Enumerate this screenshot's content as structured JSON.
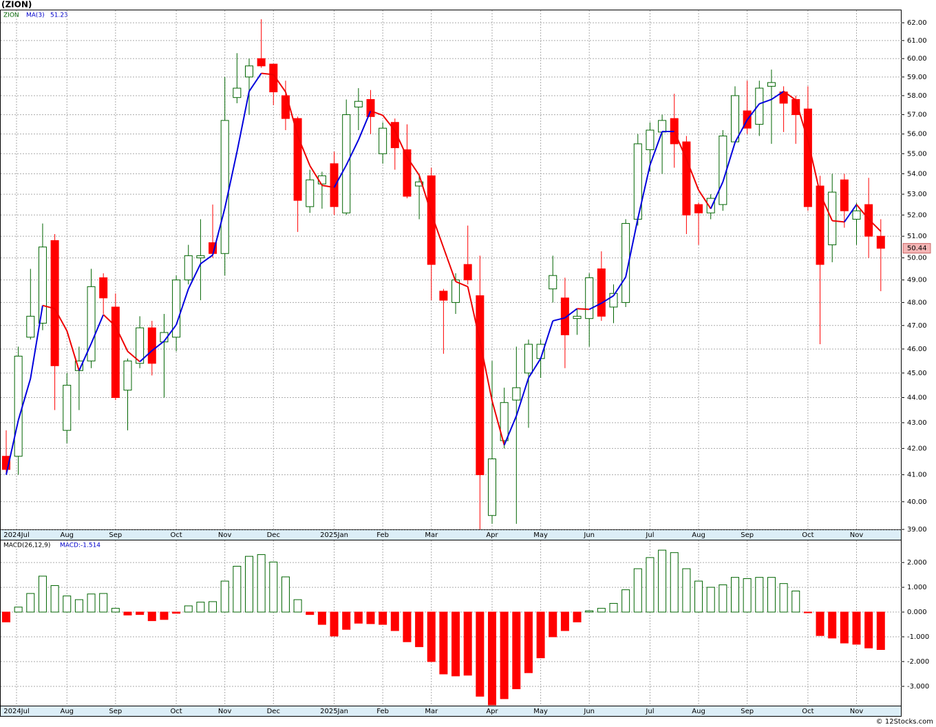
{
  "chart_data": [
    {
      "type": "candlestick",
      "title": "(ZION)",
      "symbol": "ZION",
      "ma_legend": "MA(3)",
      "log_scale": true,
      "grid": true,
      "up_color": "#006400",
      "down_color": "#ff0000",
      "ma_up_color": "#0000dd",
      "ma_down_color": "#ee0000",
      "ylim": [
        39,
        62.75
      ],
      "yticks": [
        {
          "value": 39,
          "label": "39.00"
        },
        {
          "value": 40,
          "label": "40.00"
        },
        {
          "value": 41,
          "label": "41.00"
        },
        {
          "value": 42,
          "label": "42.00"
        },
        {
          "value": 43,
          "label": "43.00"
        },
        {
          "value": 44,
          "label": "44.00"
        },
        {
          "value": 45,
          "label": "45.00"
        },
        {
          "value": 46,
          "label": "46.00"
        },
        {
          "value": 47,
          "label": "47.00"
        },
        {
          "value": 48,
          "label": "48.00"
        },
        {
          "value": 49,
          "label": "49.00"
        },
        {
          "value": 50,
          "label": "50.00"
        },
        {
          "value": 51,
          "label": "51.00"
        },
        {
          "value": 52,
          "label": "52.00"
        },
        {
          "value": 53,
          "label": "53.00"
        },
        {
          "value": 54,
          "label": "54.00"
        },
        {
          "value": 55,
          "label": "55.00"
        },
        {
          "value": 56,
          "label": "56.00"
        },
        {
          "value": 57,
          "label": "57.00"
        },
        {
          "value": 58,
          "label": "58.00"
        },
        {
          "value": 59,
          "label": "59.00"
        },
        {
          "value": 60,
          "label": "60.00"
        },
        {
          "value": 61,
          "label": "61.00"
        },
        {
          "value": 62,
          "label": "62.00"
        }
      ],
      "xticks": [
        {
          "value": 0.85,
          "label": "2024Jul"
        },
        {
          "value": 5,
          "label": "Aug"
        },
        {
          "value": 9,
          "label": "Sep"
        },
        {
          "value": 14,
          "label": "Oct"
        },
        {
          "value": 18,
          "label": "Nov"
        },
        {
          "value": 22,
          "label": "Dec"
        },
        {
          "value": 27,
          "label": "2025Jan"
        },
        {
          "value": 31,
          "label": "Feb"
        },
        {
          "value": 35,
          "label": "Mar"
        },
        {
          "value": 40,
          "label": "Apr"
        },
        {
          "value": 44,
          "label": "May"
        },
        {
          "value": 48,
          "label": "Jun"
        },
        {
          "value": 53,
          "label": "Jul"
        },
        {
          "value": 57,
          "label": "Aug"
        },
        {
          "value": 61,
          "label": "Sep"
        },
        {
          "value": 66,
          "label": "Oct"
        },
        {
          "value": 70,
          "label": "Nov"
        }
      ],
      "open": [
        41.7,
        41.7,
        46.5,
        47.1,
        50.8,
        42.7,
        45.1,
        45.5,
        49.1,
        47.8,
        44.3,
        45.4,
        46.9,
        46.3,
        46.5,
        49.0,
        50.0,
        50.7,
        50.2,
        57.9,
        59.0,
        60.0,
        59.7,
        58.0,
        56.8,
        52.4,
        53.5,
        54.5,
        52.1,
        57.4,
        57.8,
        55.0,
        56.6,
        55.2,
        53.4,
        53.9,
        48.5,
        48.0,
        49.7,
        48.3,
        39.5,
        42.3,
        43.9,
        45.0,
        45.6,
        48.6,
        48.2,
        47.3,
        47.3,
        49.5,
        47.8,
        48.0,
        51.8,
        55.2,
        56.1,
        56.8,
        55.6,
        52.5,
        52.1,
        52.5,
        55.6,
        57.2,
        56.5,
        58.5,
        58.2,
        57.8,
        57.3,
        53.4,
        50.6,
        53.7,
        51.8,
        52.5,
        51.0
      ],
      "high": [
        42.7,
        46.1,
        49.5,
        51.6,
        51.1,
        45.0,
        46.1,
        49.5,
        49.3,
        48.4,
        45.6,
        47.4,
        47.2,
        47.5,
        49.2,
        50.6,
        51.8,
        52.5,
        59.0,
        60.3,
        60.0,
        62.2,
        59.7,
        58.8,
        56.9,
        54.2,
        54.1,
        55.1,
        57.8,
        58.4,
        58.3,
        56.6,
        56.8,
        56.5,
        54.0,
        54.3,
        48.6,
        49.3,
        51.5,
        50.1,
        45.5,
        44.4,
        46.1,
        46.4,
        46.4,
        50.1,
        49.1,
        47.7,
        49.3,
        50.3,
        48.8,
        51.8,
        56.0,
        56.6,
        57.0,
        58.1,
        55.9,
        52.6,
        53.0,
        56.2,
        58.5,
        58.8,
        58.8,
        59.4,
        58.5,
        58.0,
        58.5,
        53.9,
        54.0,
        54.0,
        52.6,
        53.8,
        51.8
      ],
      "low": [
        41.0,
        41.0,
        46.4,
        46.8,
        43.5,
        42.2,
        43.5,
        45.2,
        47.5,
        43.9,
        42.7,
        45.2,
        44.9,
        44.0,
        45.9,
        48.8,
        48.1,
        50.0,
        49.2,
        57.6,
        57.0,
        59.5,
        57.5,
        56.2,
        51.2,
        52.1,
        52.3,
        52.0,
        52.0,
        56.2,
        56.0,
        54.5,
        54.2,
        52.8,
        51.8,
        48.1,
        45.8,
        47.5,
        48.8,
        39.0,
        39.2,
        42.0,
        39.2,
        42.8,
        44.8,
        48.0,
        45.2,
        46.6,
        46.1,
        47.2,
        47.1,
        47.8,
        51.5,
        54.1,
        54.0,
        54.3,
        51.1,
        50.6,
        51.8,
        52.2,
        55.5,
        56.0,
        55.9,
        55.5,
        56.1,
        55.5,
        52.2,
        46.2,
        49.8,
        51.4,
        50.6,
        50.0,
        48.5
      ],
      "close": [
        41.2,
        45.7,
        47.4,
        50.5,
        45.3,
        44.5,
        45.5,
        48.7,
        48.2,
        44.0,
        45.5,
        46.9,
        45.4,
        46.7,
        49.0,
        50.1,
        50.1,
        50.2,
        56.7,
        58.4,
        59.6,
        59.6,
        58.2,
        56.8,
        52.7,
        53.7,
        53.9,
        52.4,
        57.0,
        57.7,
        56.9,
        56.3,
        55.3,
        52.9,
        53.6,
        49.7,
        48.1,
        49.0,
        49.0,
        41.0,
        41.6,
        43.8,
        44.4,
        46.2,
        46.2,
        49.2,
        46.6,
        47.4,
        49.1,
        47.4,
        48.4,
        51.6,
        55.5,
        56.2,
        56.7,
        55.5,
        52.0,
        52.1,
        52.8,
        55.9,
        58.0,
        56.3,
        58.4,
        58.7,
        57.6,
        57.0,
        52.4,
        49.7,
        53.1,
        52.2,
        52.2,
        51.0,
        50.44
      ],
      "ma": {
        "values": [
          41.0,
          43.1,
          44.77,
          47.87,
          47.73,
          46.77,
          45.1,
          46.23,
          47.47,
          46.97,
          45.9,
          45.47,
          45.93,
          46.33,
          47.03,
          48.6,
          49.73,
          50.13,
          52.33,
          55.1,
          58.23,
          59.2,
          59.13,
          58.2,
          55.9,
          54.4,
          53.43,
          53.33,
          54.43,
          55.7,
          57.2,
          56.97,
          56.17,
          54.83,
          53.93,
          52.07,
          50.47,
          48.93,
          48.7,
          46.33,
          43.87,
          42.13,
          43.27,
          44.8,
          45.6,
          47.2,
          47.33,
          47.73,
          47.7,
          47.97,
          48.3,
          49.13,
          51.83,
          54.43,
          56.13,
          56.13,
          54.73,
          53.2,
          52.3,
          53.6,
          55.57,
          56.73,
          57.57,
          57.8,
          58.23,
          57.77,
          55.67,
          53.03,
          51.73,
          51.67,
          52.5,
          51.8,
          51.23
        ]
      }
    },
    {
      "type": "histogram",
      "legend": "MACD(26,12,9)",
      "value_legend": "MACD:-1.514",
      "pos_color": "#006400",
      "neg_color": "#ff0000",
      "grid": true,
      "ylim": [
        -3.78,
        2.92
      ],
      "yticks": [
        {
          "value": -3,
          "label": "-3.000"
        },
        {
          "value": -2,
          "label": "-2.000"
        },
        {
          "value": -1,
          "label": "-1.000"
        },
        {
          "value": 0,
          "label": "0.000"
        },
        {
          "value": 1,
          "label": "1.000"
        },
        {
          "value": 2,
          "label": "2.000"
        }
      ],
      "xticks": [
        {
          "value": 0.85,
          "label": "2024Jul"
        },
        {
          "value": 5,
          "label": "Aug"
        },
        {
          "value": 9,
          "label": "Sep"
        },
        {
          "value": 14,
          "label": "Oct"
        },
        {
          "value": 18,
          "label": "Nov"
        },
        {
          "value": 22,
          "label": "Dec"
        },
        {
          "value": 27,
          "label": "2025Jan"
        },
        {
          "value": 31,
          "label": "Feb"
        },
        {
          "value": 35,
          "label": "Mar"
        },
        {
          "value": 40,
          "label": "Apr"
        },
        {
          "value": 44,
          "label": "May"
        },
        {
          "value": 48,
          "label": "Jun"
        },
        {
          "value": 53,
          "label": "Jul"
        },
        {
          "value": 57,
          "label": "Aug"
        },
        {
          "value": 61,
          "label": "Sep"
        },
        {
          "value": 66,
          "label": "Oct"
        },
        {
          "value": 70,
          "label": "Nov"
        }
      ],
      "values": [
        -0.4,
        0.2,
        0.75,
        1.45,
        1.07,
        0.65,
        0.5,
        0.73,
        0.75,
        0.15,
        -0.12,
        -0.1,
        -0.35,
        -0.3,
        -0.05,
        0.25,
        0.4,
        0.42,
        1.25,
        1.85,
        2.25,
        2.32,
        2.02,
        1.42,
        0.5,
        -0.1,
        -0.5,
        -0.97,
        -0.7,
        -0.45,
        -0.47,
        -0.5,
        -0.75,
        -1.2,
        -1.4,
        -2.0,
        -2.5,
        -2.58,
        -2.55,
        -3.4,
        -3.75,
        -3.5,
        -3.1,
        -2.45,
        -1.85,
        -1.0,
        -0.75,
        -0.4,
        0.05,
        0.15,
        0.35,
        0.9,
        1.75,
        2.2,
        2.5,
        2.4,
        1.75,
        1.25,
        1.0,
        1.1,
        1.4,
        1.35,
        1.4,
        1.4,
        1.15,
        0.85,
        -0.03,
        -0.95,
        -1.05,
        -1.25,
        -1.3,
        -1.45,
        -1.514
      ]
    }
  ],
  "footer": "© 12Stocks.com"
}
